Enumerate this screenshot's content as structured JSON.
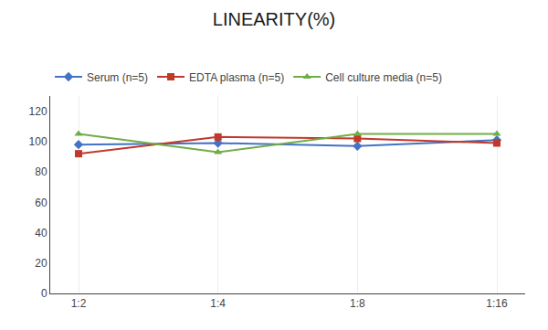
{
  "chart_data": {
    "type": "line",
    "title": "LINEARITY(%)",
    "categories": [
      "1:2",
      "1:4",
      "1:8",
      "1:16"
    ],
    "series": [
      {
        "name": "Serum (n=5)",
        "color": "#4472C4",
        "marker": "diamond",
        "values": [
          98,
          99,
          97,
          101
        ]
      },
      {
        "name": "EDTA plasma (n=5)",
        "color": "#C0392B",
        "marker": "square",
        "values": [
          92,
          103,
          102,
          99
        ]
      },
      {
        "name": "Cell culture media (n=5)",
        "color": "#70AD47",
        "marker": "triangle-up",
        "values": [
          105,
          93,
          105,
          105
        ]
      }
    ],
    "ylim": [
      0,
      130
    ],
    "yticks": [
      0,
      20,
      40,
      60,
      80,
      100,
      120
    ],
    "grid": "x",
    "legend": "top"
  }
}
